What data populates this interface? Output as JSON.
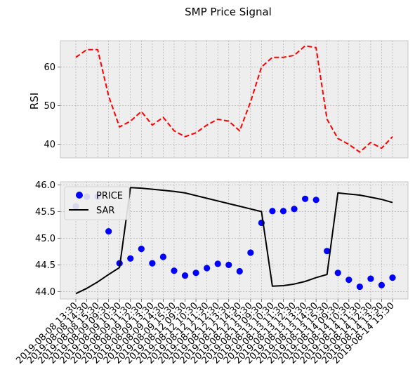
{
  "figure_title": "SMP Price Signal",
  "chart_data": [
    {
      "type": "line",
      "ylabel": "RSI",
      "ylim": [
        36.5,
        66.8
      ],
      "yticks": [
        40,
        50,
        60
      ],
      "grid": true,
      "series": [
        {
          "color": "#ff0000",
          "dash": "dashed",
          "values": [
            62.5,
            64.5,
            64.5,
            52.5,
            44.5,
            46.0,
            48.5,
            45.0,
            47.0,
            43.5,
            42.0,
            43.0,
            45.0,
            46.5,
            46.0,
            43.5,
            51.0,
            60.0,
            62.5,
            62.5,
            63.0,
            65.5,
            65.0,
            46.5,
            41.5,
            40.0,
            38.0,
            40.5,
            39.0,
            42.0
          ]
        }
      ]
    },
    {
      "type": "scatter+line",
      "ylim": [
        43.86,
        46.06
      ],
      "yticks": [
        44.0,
        44.5,
        45.0,
        45.5,
        46.0
      ],
      "ytick_labels": [
        "44.0",
        "44.5",
        "45.0",
        "45.5",
        "46.0"
      ],
      "grid": true,
      "legend": "upper-left",
      "series": [
        {
          "name": "PRICE",
          "kind": "scatter",
          "color": "#0000ff",
          "values": [
            45.6,
            45.78,
            45.78,
            45.13,
            44.53,
            44.62,
            44.8,
            44.53,
            44.65,
            44.39,
            44.3,
            44.35,
            44.44,
            44.52,
            44.5,
            44.38,
            44.73,
            45.29,
            45.51,
            45.51,
            45.55,
            45.74,
            45.72,
            44.76,
            44.35,
            44.22,
            44.09,
            44.24,
            44.12,
            44.26
          ]
        },
        {
          "name": "SAR",
          "kind": "line",
          "color": "#000000",
          "values": [
            43.96,
            44.06,
            44.18,
            44.32,
            44.45,
            45.95,
            45.94,
            45.92,
            45.9,
            45.88,
            45.85,
            45.8,
            45.75,
            45.7,
            45.65,
            45.6,
            45.55,
            45.5,
            44.1,
            44.11,
            44.14,
            44.19,
            44.26,
            44.32,
            45.85,
            45.83,
            45.81,
            45.77,
            45.73,
            45.67
          ]
        }
      ]
    }
  ],
  "x_categories": [
    "2019-08-08 13:30",
    "2019-08-08 14:30",
    "2019-08-08 15:30",
    "2019-08-09 09:30",
    "2019-08-09 10:30",
    "2019-08-09 11:30",
    "2019-08-09 12:30",
    "2019-08-09 13:30",
    "2019-08-09 14:30",
    "2019-08-09 15:30",
    "2019-08-12 09:30",
    "2019-08-12 10:30",
    "2019-08-12 11:30",
    "2019-08-12 12:30",
    "2019-08-12 13:30",
    "2019-08-12 14:30",
    "2019-08-12 15:30",
    "2019-08-13 09:30",
    "2019-08-13 10:30",
    "2019-08-13 11:30",
    "2019-08-13 12:30",
    "2019-08-13 13:30",
    "2019-08-13 14:30",
    "2019-08-13 15:30",
    "2019-08-14 09:30",
    "2019-08-14 10:30",
    "2019-08-14 11:30",
    "2019-08-14 12:30",
    "2019-08-14 13:30",
    "2019-08-14 15:30"
  ]
}
